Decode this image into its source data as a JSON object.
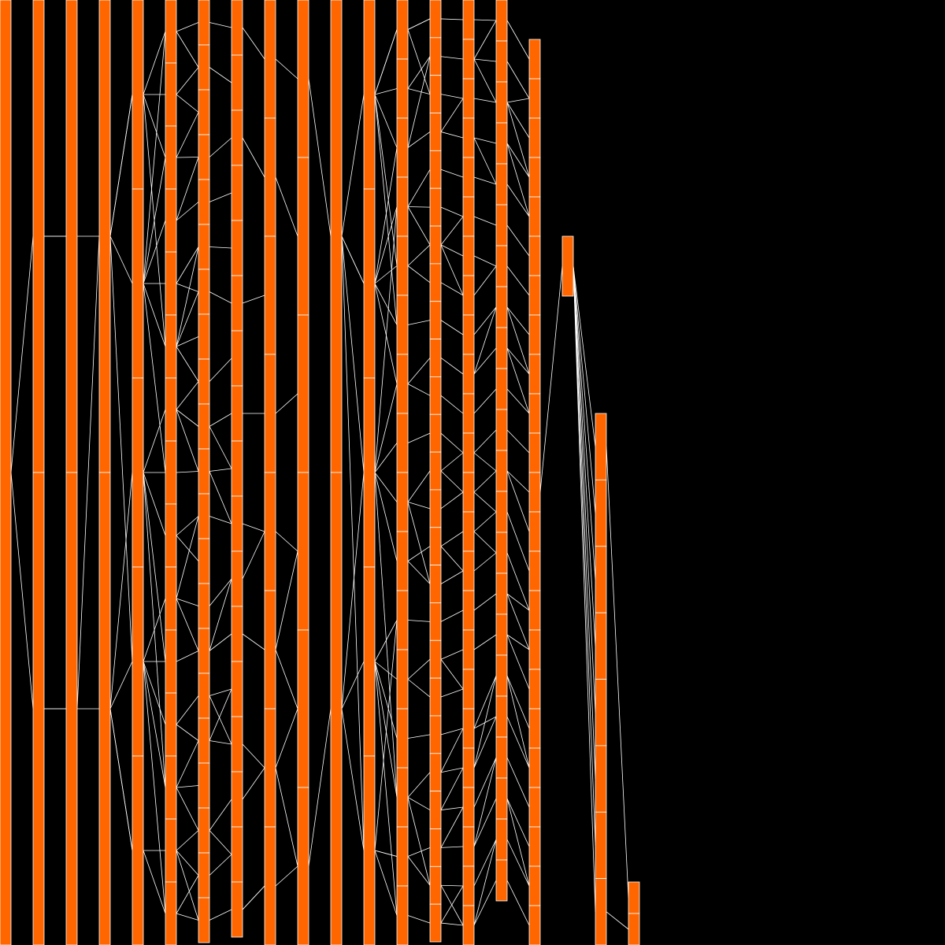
{
  "colors": {
    "background": "#000000",
    "node_fill": "#ff6600",
    "edge_stroke": "#ffffff",
    "node_border": "#ffffff"
  },
  "diagram": {
    "kind": "layered node-link graph (icicle-style columns)",
    "column_count": 20,
    "columns": [
      {
        "segments": 1
      },
      {
        "segments": 2
      },
      {
        "segments": 2
      },
      {
        "segments": 2
      },
      {
        "segments": 5
      },
      {
        "segments": 15
      },
      {
        "segments": 21
      },
      {
        "segments": 17
      },
      {
        "segments": 8
      },
      {
        "segments": 6
      },
      {
        "segments": 2
      },
      {
        "segments": 5
      },
      {
        "segments": 16
      },
      {
        "segments": 25
      },
      {
        "segments": 24
      },
      {
        "segments": 22
      },
      {
        "segments": 23
      },
      {
        "segments": 1
      },
      {
        "segments": 8
      },
      {
        "segments": 2
      }
    ]
  }
}
